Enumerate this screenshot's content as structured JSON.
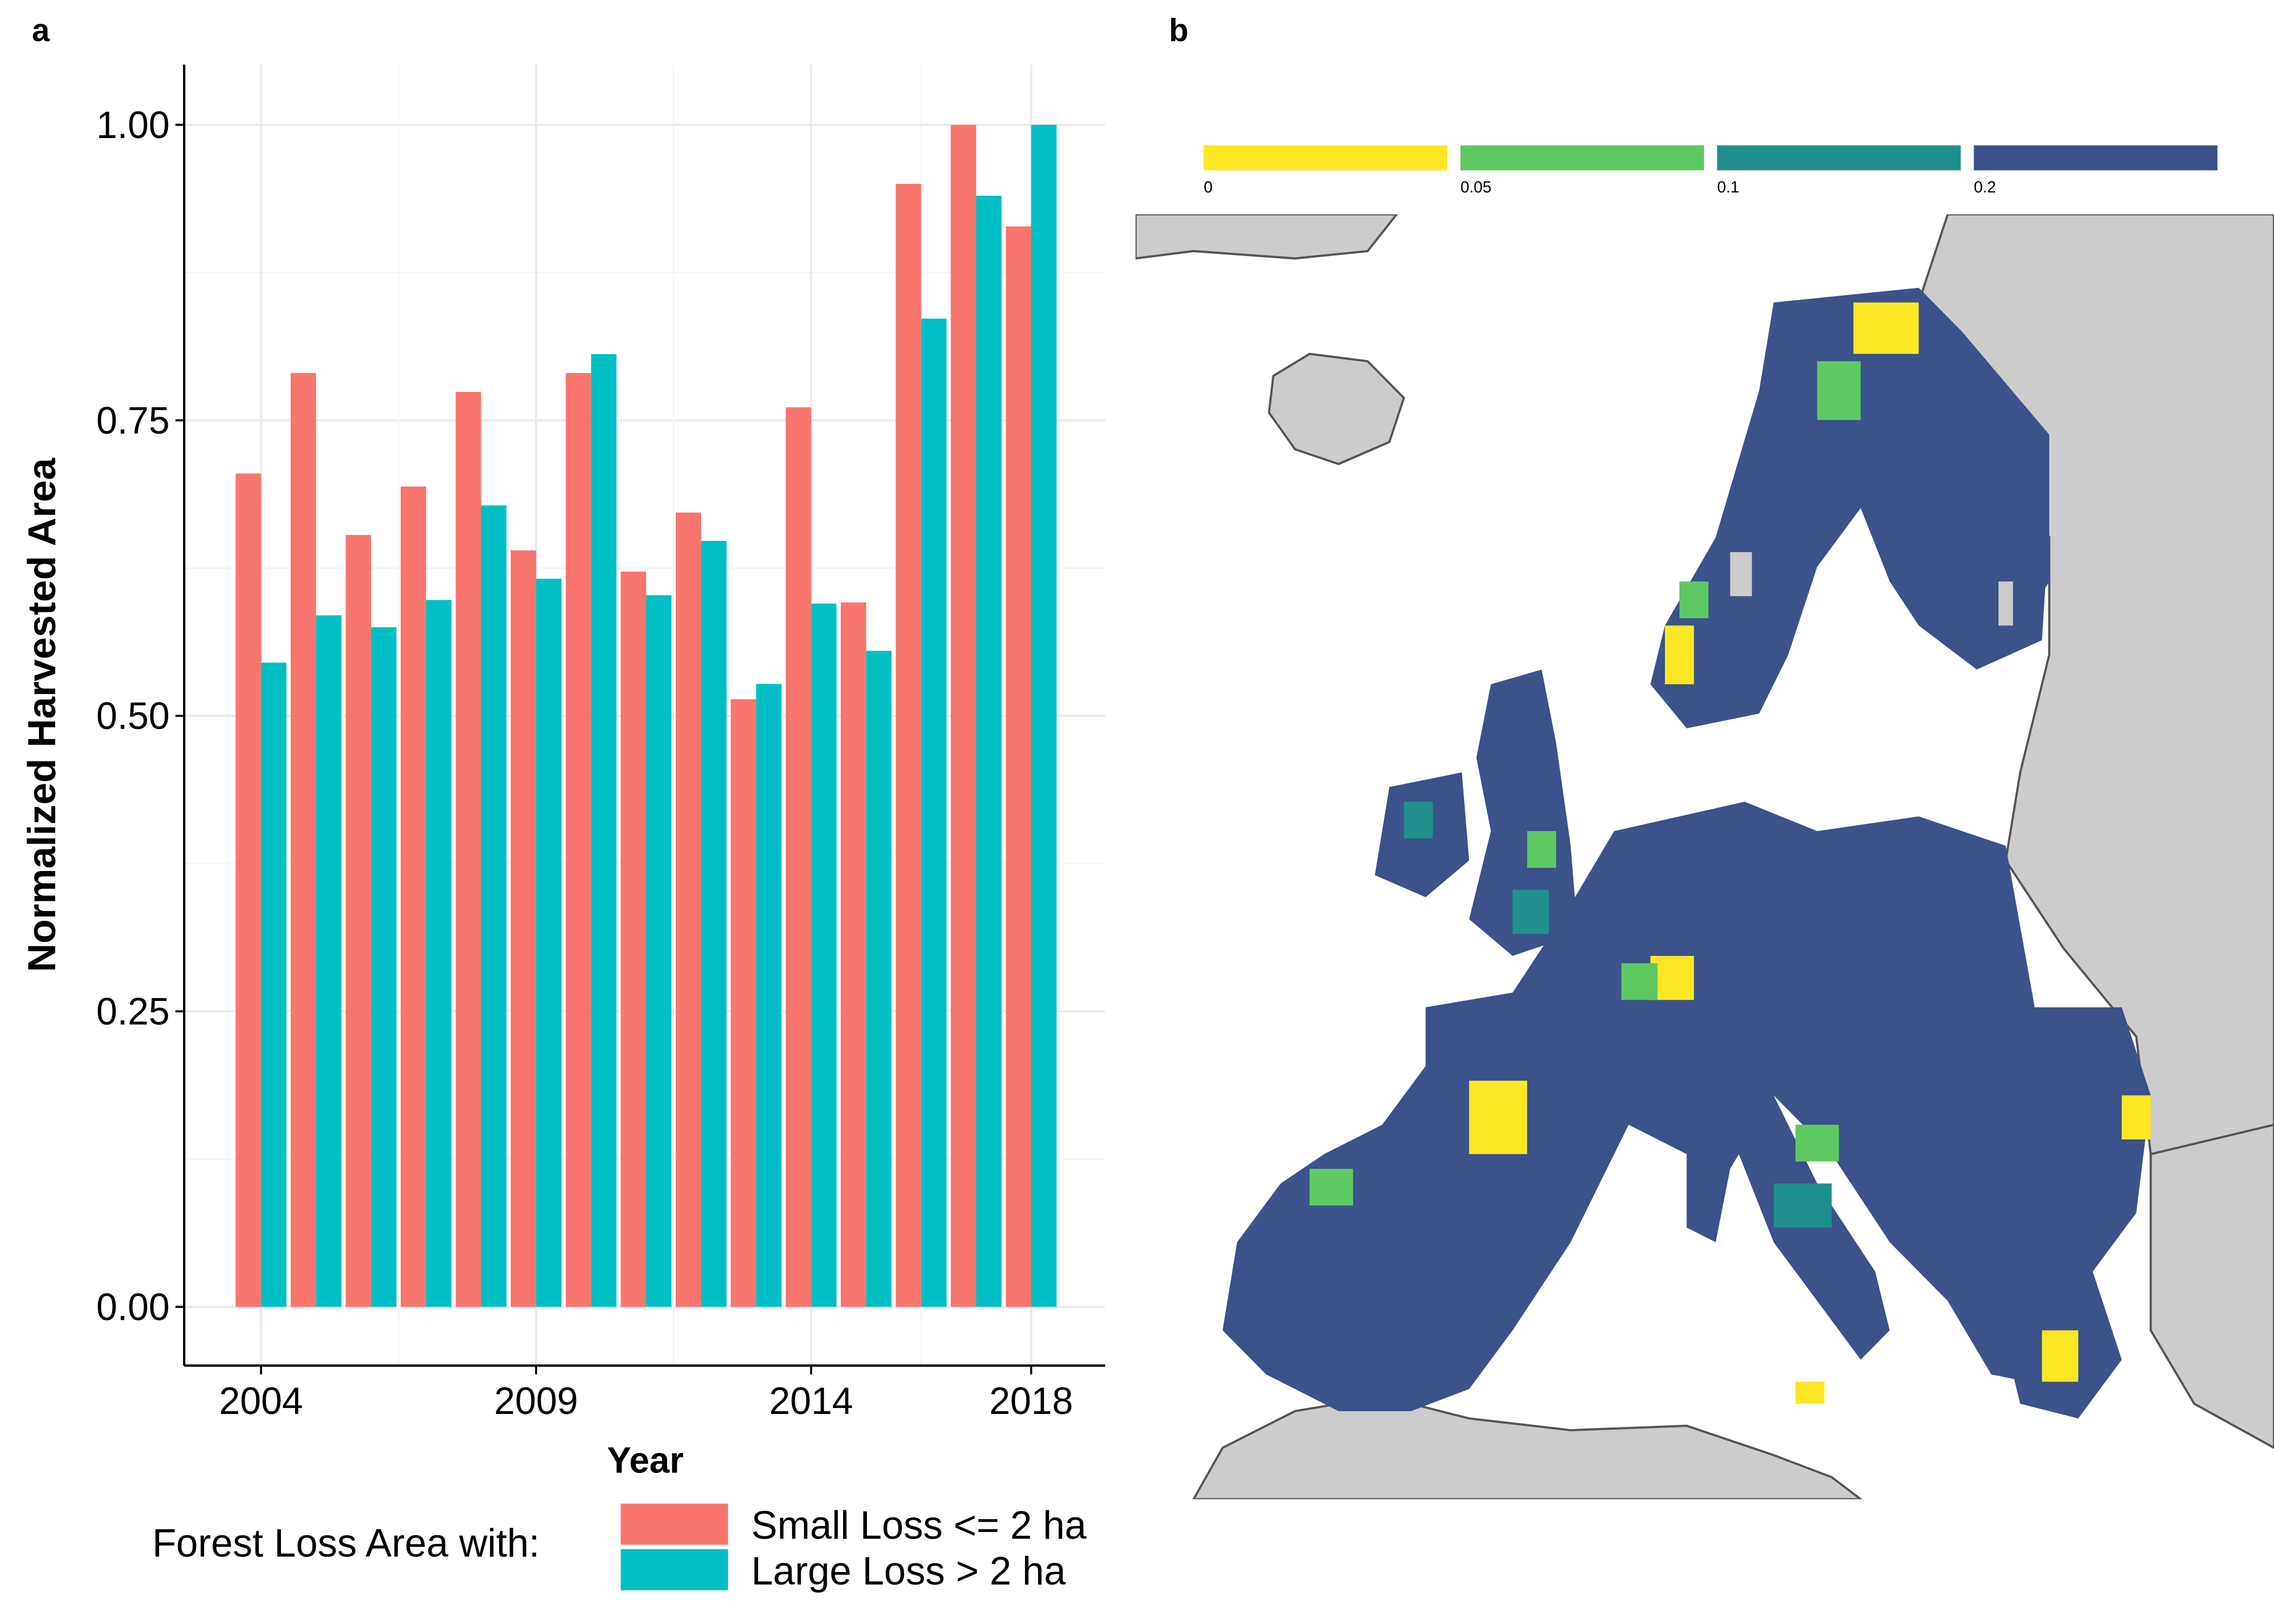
{
  "panels": {
    "a_label": "a",
    "b_label": "b"
  },
  "chart_data": [
    {
      "type": "bar",
      "title": "",
      "xlabel": "Year",
      "ylabel": "Normalized Harvested Area",
      "categories": [
        2004,
        2005,
        2006,
        2007,
        2008,
        2009,
        2010,
        2011,
        2012,
        2013,
        2014,
        2015,
        2016,
        2017,
        2018
      ],
      "x_ticks": [
        "2004",
        "2009",
        "2014",
        "2018"
      ],
      "y_ticks": [
        "0.00",
        "0.25",
        "0.50",
        "0.75",
        "1.00"
      ],
      "ylim": [
        0,
        1.05
      ],
      "grid": true,
      "legend_title": "Forest Loss Area with:",
      "legend_position": "bottom",
      "series": [
        {
          "name": "Small Loss <= 2 ha",
          "color": "#F8766D",
          "values": [
            0.705,
            0.79,
            0.653,
            0.694,
            0.774,
            0.64,
            0.79,
            0.622,
            0.672,
            0.514,
            0.761,
            0.596,
            0.95,
            1.0,
            0.914
          ]
        },
        {
          "name": "Large Loss > 2 ha",
          "color": "#00BFC4",
          "values": [
            0.545,
            0.585,
            0.575,
            0.598,
            0.678,
            0.616,
            0.806,
            0.602,
            0.648,
            0.527,
            0.595,
            0.555,
            0.836,
            0.94,
            1.0
          ]
        }
      ]
    }
  ],
  "map": {
    "colorbar": [
      {
        "label": "0",
        "color": "#FDE725"
      },
      {
        "label": "0.05",
        "color": "#5EC962"
      },
      {
        "label": "0.1",
        "color": "#21908C"
      },
      {
        "label": "0.2",
        "color": "#3B528B"
      }
    ],
    "land_color": "#CCCCCC",
    "coast_color": "#555555"
  }
}
